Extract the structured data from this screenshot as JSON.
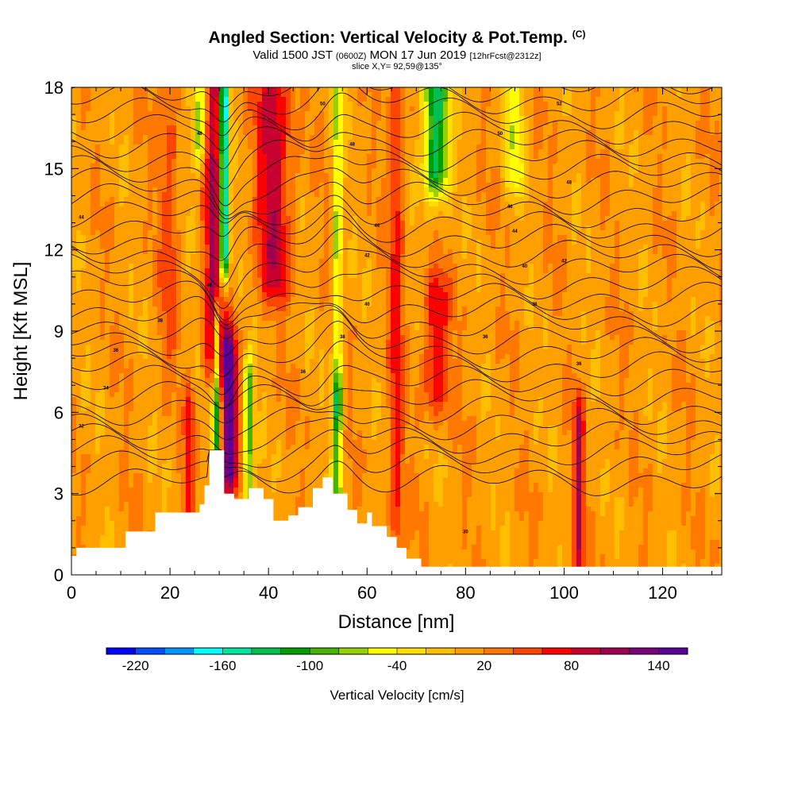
{
  "chart_data": {
    "type": "heatmap",
    "title": "Angled Section: Vertical Velocity & Pot.Temp.",
    "title_unit": "(C)",
    "subtitle": {
      "prefix": "Valid 1500 JST",
      "zulu": "(0600Z)",
      "date": "MON 17 Jun 2019",
      "forecast": "[12hrFcst@2312z]"
    },
    "slice_label": "slice X,Y= 92,59@135°",
    "xlabel": "Distance [nm]",
    "ylabel": "Height [Kft MSL]",
    "xlim": [
      0,
      132
    ],
    "ylim": [
      0,
      18
    ],
    "x_ticks": [
      "0",
      "20",
      "40",
      "60",
      "80",
      "100",
      "120"
    ],
    "y_ticks": [
      "0",
      "3",
      "6",
      "9",
      "12",
      "15",
      "18"
    ],
    "colorbar": {
      "label": "Vertical Velocity [cm/s]",
      "tick_labels": [
        "-220",
        "-160",
        "-100",
        "-40",
        "20",
        "80",
        "140"
      ],
      "colors": [
        "#0000ff",
        "#0050ff",
        "#0096ff",
        "#00ffff",
        "#00e6a0",
        "#00c050",
        "#009e00",
        "#46b400",
        "#96d200",
        "#ffff00",
        "#ffde00",
        "#ffbe00",
        "#ff9f00",
        "#ff7800",
        "#ff4600",
        "#ff0000",
        "#c80032",
        "#a00050",
        "#780078",
        "#5a0096"
      ]
    },
    "terrain": [
      [
        0,
        0.7
      ],
      [
        1,
        1.0
      ],
      [
        11,
        1.6
      ],
      [
        17,
        2.3
      ],
      [
        26,
        2.6
      ],
      [
        27,
        3.3
      ],
      [
        28,
        4.6
      ],
      [
        30,
        4.6
      ],
      [
        31,
        3.0
      ],
      [
        33,
        2.8
      ],
      [
        36,
        3.2
      ],
      [
        39,
        2.8
      ],
      [
        41,
        2.0
      ],
      [
        44,
        2.2
      ],
      [
        46,
        2.5
      ],
      [
        49,
        3.2
      ],
      [
        51,
        3.6
      ],
      [
        53,
        3.0
      ],
      [
        56,
        2.4
      ],
      [
        58,
        1.9
      ],
      [
        60,
        2.3
      ],
      [
        61,
        1.8
      ],
      [
        64,
        1.4
      ],
      [
        66,
        1.0
      ],
      [
        68,
        0.6
      ],
      [
        71,
        0.3
      ],
      [
        132,
        0.3
      ]
    ],
    "updrafts": [
      {
        "x": 29,
        "y0": 8,
        "y1": 18,
        "w": 2.0,
        "v": 90
      },
      {
        "x": 32,
        "y0": 4,
        "y1": 8,
        "w": 1.5,
        "v": 140
      },
      {
        "x": 41,
        "y0": 11,
        "y1": 18,
        "w": 3.5,
        "v": 75
      },
      {
        "x": 24,
        "y0": 2.5,
        "y1": 6,
        "w": 1.0,
        "v": 55
      },
      {
        "x": 66,
        "y0": 2,
        "y1": 18,
        "w": 1.5,
        "v": 50
      },
      {
        "x": 74,
        "y0": 7,
        "y1": 10,
        "w": 2.5,
        "v": 65
      },
      {
        "x": 103,
        "y0": 0.5,
        "y1": 5.5,
        "w": 1.0,
        "v": 85
      },
      {
        "x": 20,
        "y0": 9,
        "y1": 18,
        "w": 2.0,
        "v": 35
      }
    ],
    "downdrafts": [
      {
        "x": 31,
        "y0": 12,
        "y1": 18,
        "w": 0.9,
        "v": -230
      },
      {
        "x": 29.5,
        "y0": 4,
        "y1": 9,
        "w": 0.8,
        "v": -130
      },
      {
        "x": 36,
        "y0": 2.5,
        "y1": 7,
        "w": 1.0,
        "v": -110
      },
      {
        "x": 54,
        "y0": 2,
        "y1": 6,
        "w": 1.0,
        "v": -110
      },
      {
        "x": 54,
        "y0": 7,
        "y1": 18,
        "w": 1.0,
        "v": -80
      },
      {
        "x": 74,
        "y0": 15,
        "y1": 18,
        "w": 2.5,
        "v": -150
      },
      {
        "x": 26,
        "y0": 16,
        "y1": 18,
        "w": 1.5,
        "v": -90
      },
      {
        "x": 90,
        "y0": 15,
        "y1": 18,
        "w": 2.0,
        "v": -60
      }
    ],
    "theta_contours": {
      "min": 24,
      "max": 52,
      "step": 1,
      "base_height": 3.5,
      "step_height": 0.52
    },
    "contour_labels": [
      {
        "x": 2,
        "y": 5.5,
        "text": "32"
      },
      {
        "x": 7,
        "y": 6.9,
        "text": "34"
      },
      {
        "x": 9,
        "y": 8.3,
        "text": "36"
      },
      {
        "x": 18,
        "y": 9.4,
        "text": "38"
      },
      {
        "x": 28,
        "y": 10.7,
        "text": "40"
      },
      {
        "x": 2,
        "y": 13.2,
        "text": "44"
      },
      {
        "x": 26,
        "y": 16.3,
        "text": "48"
      },
      {
        "x": 51,
        "y": 17.4,
        "text": "50"
      },
      {
        "x": 57,
        "y": 15.9,
        "text": "48"
      },
      {
        "x": 62,
        "y": 12.9,
        "text": "44"
      },
      {
        "x": 60,
        "y": 11.8,
        "text": "42"
      },
      {
        "x": 60,
        "y": 10.0,
        "text": "40"
      },
      {
        "x": 55,
        "y": 8.8,
        "text": "38"
      },
      {
        "x": 47,
        "y": 7.5,
        "text": "36"
      },
      {
        "x": 80,
        "y": 1.6,
        "text": "30"
      },
      {
        "x": 84,
        "y": 8.8,
        "text": "36"
      },
      {
        "x": 94,
        "y": 10.0,
        "text": "38"
      },
      {
        "x": 92,
        "y": 11.4,
        "text": "40"
      },
      {
        "x": 100,
        "y": 11.6,
        "text": "42"
      },
      {
        "x": 90,
        "y": 12.7,
        "text": "44"
      },
      {
        "x": 89,
        "y": 13.6,
        "text": "46"
      },
      {
        "x": 101,
        "y": 14.5,
        "text": "48"
      },
      {
        "x": 87,
        "y": 16.3,
        "text": "50"
      },
      {
        "x": 99,
        "y": 17.4,
        "text": "52"
      },
      {
        "x": 103,
        "y": 7.8,
        "text": "36"
      }
    ]
  }
}
